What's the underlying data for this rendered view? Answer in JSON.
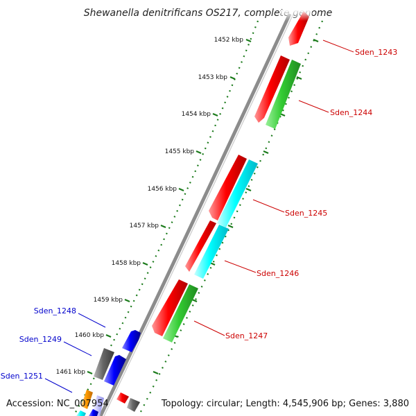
{
  "title": "Shewanella denitrificans OS217, complete genome",
  "footer": {
    "accession": "Accession: NC_007954",
    "summary": "Topology: circular; Length: 4,545,906 bp; Genes: 3,880"
  },
  "colors": {
    "backbone": "#888888",
    "forward_label": "#cc0000",
    "reverse_label": "#0000cc",
    "tick": "#1a7a1a",
    "red": "#ff0000",
    "green": "#33cc33",
    "cyan": "#00ffff",
    "blue": "#0000ff",
    "gray": "#666666",
    "orange": "#ff9900"
  },
  "ticks": [
    "1452 kbp",
    "1453 kbp",
    "1454 kbp",
    "1455 kbp",
    "1456 kbp",
    "1457 kbp",
    "1458 kbp",
    "1459 kbp",
    "1460 kbp",
    "1461 kbp"
  ],
  "forward_genes": [
    {
      "label": "Sden_1243"
    },
    {
      "label": "Sden_1244"
    },
    {
      "label": "Sden_1245"
    },
    {
      "label": "Sden_1246"
    },
    {
      "label": "Sden_1247"
    }
  ],
  "reverse_genes": [
    {
      "label": "Sden_1248"
    },
    {
      "label": "Sden_1249"
    },
    {
      "label": "Sden_1251"
    }
  ]
}
